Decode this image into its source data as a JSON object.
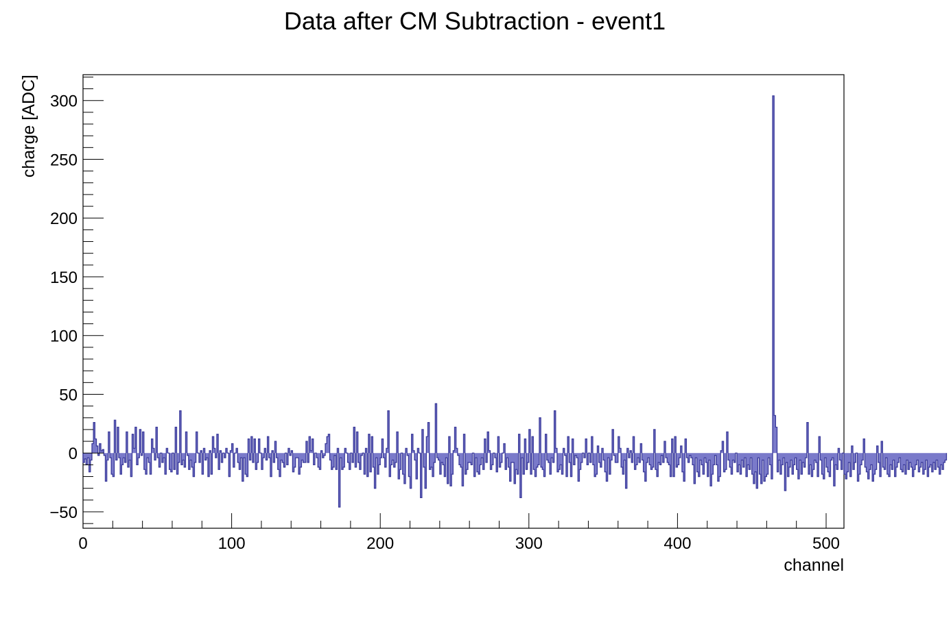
{
  "chart_data": {
    "type": "line",
    "style": "step-histogram",
    "title": "Data after CM Subtraction - event1",
    "xlabel": "channel",
    "ylabel": "charge [ADC]",
    "xlim": [
      0,
      512
    ],
    "ylim": [
      -64,
      322
    ],
    "x_ticks": [
      0,
      100,
      200,
      300,
      400,
      500
    ],
    "y_ticks": [
      -50,
      0,
      50,
      100,
      150,
      200,
      250,
      300
    ],
    "bin_width": 1,
    "grid": false,
    "legend": "none",
    "line_color": "#3a3a9a",
    "fill_color": "#6b6bc4",
    "series": [
      {
        "values": [
          -8,
          -5,
          -10,
          -4,
          -16,
          -6,
          8,
          26,
          12,
          6,
          -2,
          8,
          2,
          3,
          -2,
          -24,
          -6,
          18,
          -4,
          -18,
          -20,
          28,
          -6,
          22,
          -4,
          -18,
          -10,
          -4,
          -8,
          18,
          -12,
          -6,
          -20,
          16,
          4,
          22,
          -10,
          -4,
          20,
          -2,
          18,
          -14,
          -18,
          -4,
          -8,
          -18,
          12,
          4,
          -6,
          22,
          -4,
          -12,
          0,
          -8,
          -4,
          -18,
          4,
          0,
          -14,
          -16,
          0,
          -14,
          22,
          -18,
          -8,
          36,
          -10,
          -6,
          -12,
          18,
          -2,
          -14,
          -6,
          -12,
          -20,
          -8,
          18,
          0,
          -8,
          2,
          -18,
          4,
          -6,
          -4,
          -20,
          2,
          -18,
          14,
          4,
          -4,
          16,
          -14,
          2,
          -8,
          0,
          -4,
          4,
          0,
          -20,
          2,
          8,
          -12,
          0,
          4,
          -8,
          -14,
          -4,
          -24,
          -4,
          -18,
          -20,
          12,
          -6,
          14,
          -8,
          12,
          -14,
          -8,
          12,
          0,
          -14,
          -4,
          4,
          -6,
          14,
          -4,
          -20,
          2,
          -8,
          10,
          -4,
          -14,
          -20,
          -6,
          -8,
          -12,
          0,
          -10,
          4,
          -2,
          2,
          -16,
          -12,
          -4,
          -4,
          -18,
          -12,
          -6,
          -8,
          -8,
          10,
          -8,
          14,
          2,
          12,
          -10,
          0,
          -4,
          -12,
          -14,
          2,
          -4,
          -2,
          8,
          14,
          16,
          -6,
          -14,
          -12,
          -2,
          -14,
          4,
          -46,
          -4,
          -14,
          -12,
          4,
          0,
          -8,
          -14,
          0,
          -8,
          22,
          -12,
          18,
          -8,
          -14,
          -2,
          0,
          -18,
          4,
          -20,
          16,
          -16,
          14,
          -12,
          -30,
          -4,
          -18,
          -10,
          -4,
          12,
          -4,
          -12,
          4,
          36,
          -20,
          -10,
          -6,
          -12,
          -8,
          18,
          -22,
          -14,
          0,
          -18,
          -26,
          4,
          -2,
          -20,
          -30,
          16,
          2,
          -6,
          -22,
          4,
          0,
          -38,
          20,
          -12,
          -30,
          14,
          26,
          -14,
          -12,
          -20,
          -8,
          42,
          -4,
          -6,
          -18,
          -8,
          -10,
          -20,
          -4,
          -26,
          14,
          -28,
          -18,
          2,
          22,
          4,
          -2,
          -10,
          -12,
          -28,
          16,
          -18,
          -14,
          -8,
          -8,
          -10,
          0,
          -20,
          -4,
          -16,
          -18,
          -10,
          -4,
          -14,
          12,
          -8,
          18,
          2,
          -14,
          -10,
          0,
          -4,
          -16,
          14,
          -12,
          -8,
          0,
          8,
          -14,
          -4,
          -12,
          -24,
          -8,
          -8,
          -26,
          -14,
          -18,
          16,
          -38,
          -4,
          -18,
          12,
          -14,
          -8,
          20,
          -18,
          14,
          -14,
          -20,
          -12,
          -10,
          30,
          -12,
          -14,
          -20,
          16,
          -6,
          -8,
          -18,
          -4,
          -8,
          36,
          4,
          -16,
          -14,
          -10,
          -18,
          4,
          -2,
          -20,
          14,
          -8,
          -20,
          12,
          -10,
          -2,
          -4,
          -24,
          -14,
          -8,
          0,
          -4,
          12,
          -10,
          0,
          -8,
          14,
          -10,
          -20,
          -18,
          6,
          -8,
          -12,
          4,
          -6,
          -16,
          -24,
          -4,
          -18,
          -6,
          20,
          -2,
          -8,
          -8,
          14,
          4,
          -12,
          -18,
          -6,
          -30,
          4,
          -4,
          2,
          -8,
          14,
          -14,
          -10,
          -4,
          -8,
          8,
          -6,
          -16,
          -24,
          -8,
          -4,
          -10,
          -14,
          -12,
          20,
          -14,
          -20,
          -8,
          -10,
          -2,
          -8,
          10,
          -4,
          -8,
          -10,
          -20,
          12,
          -20,
          14,
          -12,
          -10,
          -4,
          6,
          -16,
          -24,
          12,
          -4,
          -8,
          -2,
          -4,
          -10,
          -26,
          -4,
          -16,
          -20,
          -6,
          -10,
          -18,
          -4,
          -8,
          -20,
          -6,
          -28,
          -18,
          -10,
          -2,
          -10,
          -24,
          -20,
          2,
          10,
          -16,
          -14,
          18,
          -6,
          -12,
          -18,
          -6,
          -8,
          0,
          -16,
          -10,
          -18,
          -6,
          -12,
          -4,
          -20,
          -10,
          -14,
          -4,
          -18,
          -26,
          -16,
          -30,
          -4,
          -18,
          -26,
          -6,
          -24,
          -20,
          -18,
          -4,
          -10,
          -22,
          304,
          32,
          22,
          -16,
          -6,
          -18,
          -10,
          -4,
          -32,
          -8,
          -20,
          -12,
          -6,
          -18,
          -10,
          -4,
          -14,
          -22,
          -6,
          -18,
          -8,
          -12,
          -4,
          26,
          -18,
          -10,
          -20,
          -14,
          -6,
          -8,
          -20,
          14,
          -6,
          -18,
          -22,
          -4,
          -12,
          -16,
          -20,
          -6,
          -4,
          -28,
          -10,
          -14,
          4,
          -6,
          -14,
          0,
          -18,
          -22,
          -16,
          -8,
          -20,
          6,
          -14,
          -8,
          0,
          -24,
          -18,
          -10,
          -6,
          12,
          -12,
          -16,
          -22,
          -14,
          -10,
          -24,
          -18,
          -14,
          6,
          -8,
          -20,
          10,
          -12,
          -14,
          -4,
          -18,
          -20,
          -10,
          -14,
          -6,
          -20,
          -12,
          -8,
          -4,
          -14,
          -16,
          -10,
          -18,
          -6,
          -14,
          -8,
          -12,
          -20,
          -14,
          -10,
          -6,
          -16,
          -12,
          -8,
          -18,
          -14,
          -6,
          -20,
          -12,
          -10,
          -16,
          -8,
          -14,
          -6,
          -12,
          -18,
          -10,
          -14,
          -8,
          -6
        ]
      }
    ]
  }
}
